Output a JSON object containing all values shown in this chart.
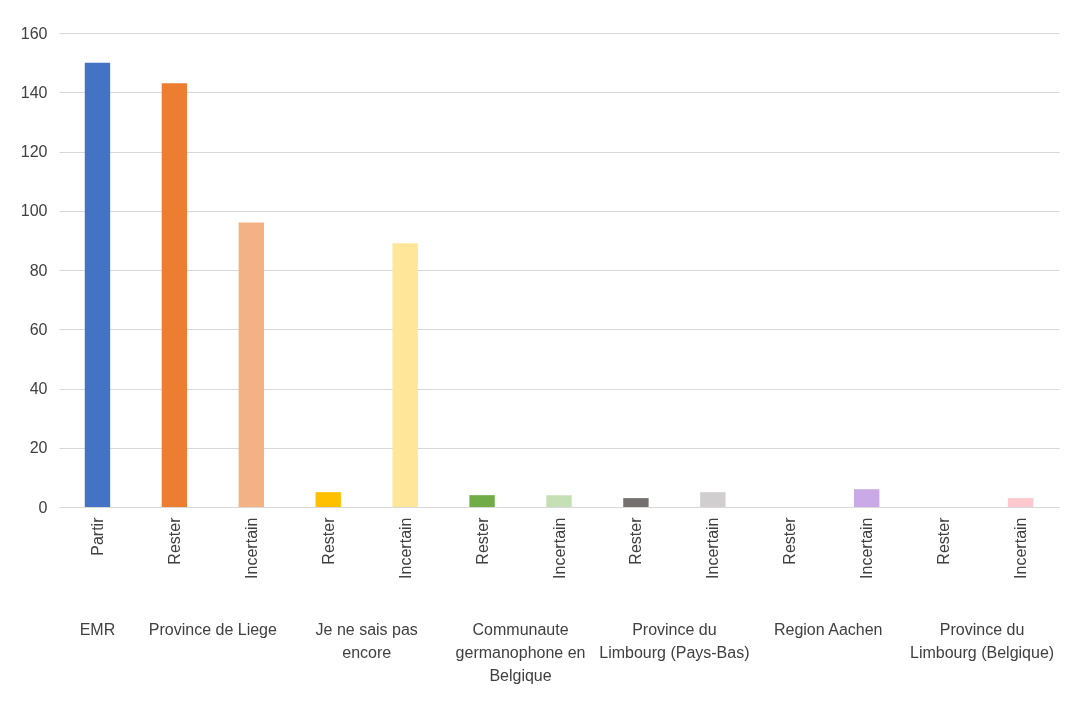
{
  "chart_data": {
    "type": "bar",
    "categories": [
      "Partir",
      "Rester",
      "Incertain",
      "Rester",
      "Incertain",
      "Rester",
      "Incertain",
      "Rester",
      "Incertain",
      "Rester",
      "Incertain",
      "Rester",
      "Incertain"
    ],
    "values": [
      150,
      143,
      96,
      5,
      89,
      4,
      4,
      3,
      5,
      0,
      6,
      0,
      3
    ],
    "colors": [
      "#4472c4",
      "#ed7d31",
      "#f4b183",
      "#ffc000",
      "#ffe699",
      "#70ad47",
      "#c5e0b4",
      "#767171",
      "#d0cece",
      "#a5a5a5",
      "#c9a9e6",
      "#a5a5a5",
      "#ffc7ce"
    ],
    "ylim": [
      0,
      160
    ],
    "yticks": [
      0,
      20,
      40,
      60,
      80,
      100,
      120,
      140,
      160
    ],
    "grid": "y",
    "legend": false,
    "annotations": [
      "EMR",
      "Province de Liege",
      "Je ne sais pas encore",
      "Communaute germanophone en Belgique",
      "Province du Limbourg (Pays-Bas)",
      "Region Aachen",
      "Province du Limbourg (Belgique)"
    ]
  }
}
